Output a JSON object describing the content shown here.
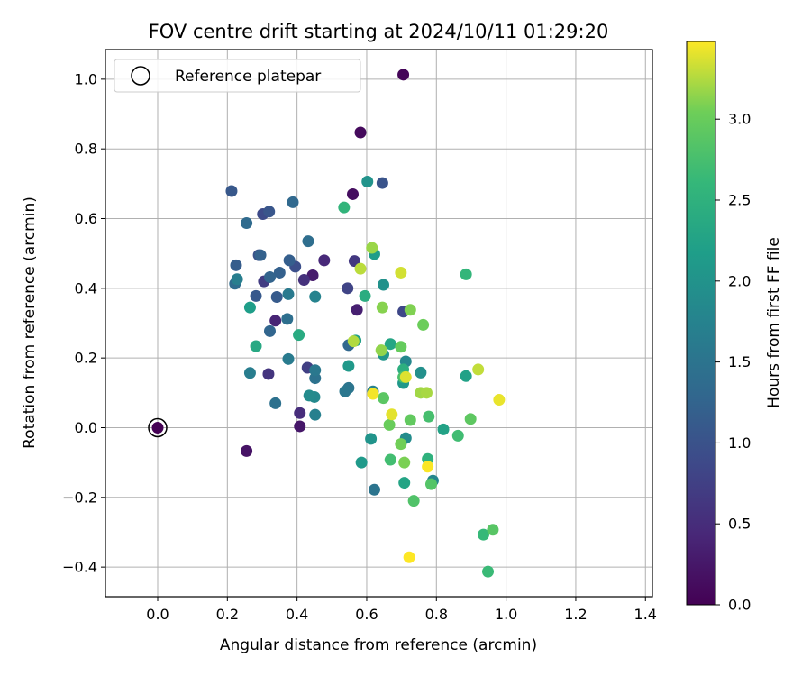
{
  "chart_data": {
    "type": "scatter",
    "title": "FOV centre drift starting at 2024/10/11 01:29:20",
    "xlabel": "Angular distance from reference (arcmin)",
    "ylabel": "Rotation from reference (arcmin)",
    "xlim": [
      -0.15,
      1.42
    ],
    "ylim": [
      -0.485,
      1.085
    ],
    "x_ticks": [
      0.0,
      0.2,
      0.4,
      0.6,
      0.8,
      1.0,
      1.2,
      1.4
    ],
    "x_tick_labels": [
      "0.0",
      "0.2",
      "0.4",
      "0.6",
      "0.8",
      "1.0",
      "1.2",
      "1.4"
    ],
    "y_ticks": [
      -0.4,
      -0.2,
      0.0,
      0.2,
      0.4,
      0.6,
      0.8,
      1.0
    ],
    "y_tick_labels": [
      "−0.4",
      "−0.2",
      "0.0",
      "0.2",
      "0.4",
      "0.6",
      "0.8",
      "1.0"
    ],
    "grid": true,
    "legend": {
      "placement": "upper-left",
      "entries": [
        "Reference platepar"
      ]
    },
    "colorbar": {
      "label": "Hours from first FF file",
      "colormap": "viridis",
      "range": [
        0.0,
        3.48
      ],
      "ticks": [
        0.0,
        0.5,
        1.0,
        1.5,
        2.0,
        2.5,
        3.0
      ],
      "tick_labels": [
        "0.0",
        "0.5",
        "1.0",
        "1.5",
        "2.0",
        "2.5",
        "3.0"
      ]
    },
    "reference_point": {
      "x": 0.0,
      "y": 0.0
    },
    "points": [
      {
        "x": 0.0,
        "y": 0.0,
        "h": 0.0
      },
      {
        "x": 0.705,
        "y": 1.013,
        "h": 0.05
      },
      {
        "x": 0.582,
        "y": 0.847,
        "h": 0.1
      },
      {
        "x": 0.56,
        "y": 0.67,
        "h": 0.15
      },
      {
        "x": 0.255,
        "y": -0.067,
        "h": 0.2
      },
      {
        "x": 0.408,
        "y": 0.004,
        "h": 0.25
      },
      {
        "x": 0.445,
        "y": 0.437,
        "h": 0.3
      },
      {
        "x": 0.572,
        "y": 0.338,
        "h": 0.35
      },
      {
        "x": 0.338,
        "y": 0.307,
        "h": 0.4
      },
      {
        "x": 0.478,
        "y": 0.48,
        "h": 0.45
      },
      {
        "x": 0.408,
        "y": 0.042,
        "h": 0.5
      },
      {
        "x": 0.42,
        "y": 0.424,
        "h": 0.55
      },
      {
        "x": 0.318,
        "y": 0.154,
        "h": 0.6
      },
      {
        "x": 0.565,
        "y": 0.478,
        "h": 0.65
      },
      {
        "x": 0.305,
        "y": 0.42,
        "h": 0.7
      },
      {
        "x": 0.43,
        "y": 0.172,
        "h": 0.75
      },
      {
        "x": 0.545,
        "y": 0.4,
        "h": 0.8
      },
      {
        "x": 0.705,
        "y": 0.333,
        "h": 0.85
      },
      {
        "x": 0.302,
        "y": 0.613,
        "h": 0.9
      },
      {
        "x": 0.395,
        "y": 0.462,
        "h": 0.95
      },
      {
        "x": 0.29,
        "y": 0.495,
        "h": 1.0
      },
      {
        "x": 0.645,
        "y": 0.702,
        "h": 1.02
      },
      {
        "x": 0.32,
        "y": 0.62,
        "h": 1.05
      },
      {
        "x": 0.212,
        "y": 0.679,
        "h": 1.08
      },
      {
        "x": 0.282,
        "y": 0.378,
        "h": 1.1
      },
      {
        "x": 0.342,
        "y": 0.375,
        "h": 1.12
      },
      {
        "x": 0.225,
        "y": 0.466,
        "h": 1.15
      },
      {
        "x": 0.378,
        "y": 0.48,
        "h": 1.18
      },
      {
        "x": 0.35,
        "y": 0.445,
        "h": 1.2
      },
      {
        "x": 0.295,
        "y": 0.495,
        "h": 1.22
      },
      {
        "x": 0.322,
        "y": 0.432,
        "h": 1.25
      },
      {
        "x": 0.322,
        "y": 0.277,
        "h": 1.28
      },
      {
        "x": 0.548,
        "y": 0.237,
        "h": 1.3
      },
      {
        "x": 0.388,
        "y": 0.647,
        "h": 1.32
      },
      {
        "x": 0.255,
        "y": 0.587,
        "h": 1.35
      },
      {
        "x": 0.222,
        "y": 0.413,
        "h": 1.38
      },
      {
        "x": 0.432,
        "y": 0.535,
        "h": 1.4
      },
      {
        "x": 0.372,
        "y": 0.312,
        "h": 1.42
      },
      {
        "x": 0.338,
        "y": 0.07,
        "h": 1.45
      },
      {
        "x": 0.452,
        "y": 0.142,
        "h": 1.48
      },
      {
        "x": 0.622,
        "y": -0.178,
        "h": 1.5
      },
      {
        "x": 0.548,
        "y": 0.114,
        "h": 1.52
      },
      {
        "x": 0.538,
        "y": 0.104,
        "h": 1.55
      },
      {
        "x": 0.452,
        "y": 0.165,
        "h": 1.58
      },
      {
        "x": 0.375,
        "y": 0.383,
        "h": 1.6
      },
      {
        "x": 0.375,
        "y": 0.197,
        "h": 1.62
      },
      {
        "x": 0.265,
        "y": 0.157,
        "h": 1.65
      },
      {
        "x": 0.228,
        "y": 0.426,
        "h": 1.68
      },
      {
        "x": 0.452,
        "y": 0.037,
        "h": 1.7
      },
      {
        "x": 0.618,
        "y": 0.104,
        "h": 1.72
      },
      {
        "x": 0.452,
        "y": 0.376,
        "h": 1.75
      },
      {
        "x": 0.79,
        "y": -0.152,
        "h": 1.8
      },
      {
        "x": 0.712,
        "y": 0.19,
        "h": 1.82
      },
      {
        "x": 0.45,
        "y": 0.088,
        "h": 1.85
      },
      {
        "x": 0.435,
        "y": 0.092,
        "h": 1.88
      },
      {
        "x": 0.712,
        "y": -0.03,
        "h": 1.9
      },
      {
        "x": 0.755,
        "y": 0.158,
        "h": 1.95
      },
      {
        "x": 0.648,
        "y": 0.41,
        "h": 1.98
      },
      {
        "x": 0.602,
        "y": 0.706,
        "h": 2.0
      },
      {
        "x": 0.612,
        "y": -0.032,
        "h": 2.02
      },
      {
        "x": 0.648,
        "y": 0.21,
        "h": 2.05
      },
      {
        "x": 0.705,
        "y": 0.128,
        "h": 2.08
      },
      {
        "x": 0.548,
        "y": 0.177,
        "h": 2.1
      },
      {
        "x": 0.585,
        "y": -0.1,
        "h": 2.12
      },
      {
        "x": 0.622,
        "y": 0.498,
        "h": 2.15
      },
      {
        "x": 0.265,
        "y": 0.345,
        "h": 2.18
      },
      {
        "x": 0.568,
        "y": 0.25,
        "h": 2.2
      },
      {
        "x": 0.885,
        "y": 0.148,
        "h": 2.22
      },
      {
        "x": 0.82,
        "y": -0.005,
        "h": 2.25
      },
      {
        "x": 0.708,
        "y": -0.158,
        "h": 2.28
      },
      {
        "x": 0.668,
        "y": 0.24,
        "h": 2.3
      },
      {
        "x": 0.282,
        "y": 0.234,
        "h": 2.35
      },
      {
        "x": 0.405,
        "y": 0.266,
        "h": 2.38
      },
      {
        "x": 0.595,
        "y": 0.378,
        "h": 2.42
      },
      {
        "x": 0.705,
        "y": 0.167,
        "h": 2.45
      },
      {
        "x": 0.775,
        "y": -0.09,
        "h": 2.5
      },
      {
        "x": 0.535,
        "y": 0.632,
        "h": 2.55
      },
      {
        "x": 0.885,
        "y": 0.44,
        "h": 2.58
      },
      {
        "x": 0.935,
        "y": -0.307,
        "h": 2.62
      },
      {
        "x": 0.948,
        "y": -0.413,
        "h": 2.65
      },
      {
        "x": 0.862,
        "y": -0.023,
        "h": 2.7
      },
      {
        "x": 0.668,
        "y": -0.092,
        "h": 2.72
      },
      {
        "x": 0.778,
        "y": 0.032,
        "h": 2.75
      },
      {
        "x": 0.705,
        "y": 0.145,
        "h": 2.78
      },
      {
        "x": 0.735,
        "y": -0.21,
        "h": 2.82
      },
      {
        "x": 0.785,
        "y": -0.162,
        "h": 2.85
      },
      {
        "x": 0.962,
        "y": -0.293,
        "h": 2.88
      },
      {
        "x": 0.648,
        "y": 0.085,
        "h": 2.9
      },
      {
        "x": 0.898,
        "y": 0.025,
        "h": 2.92
      },
      {
        "x": 0.725,
        "y": 0.022,
        "h": 2.95
      },
      {
        "x": 0.698,
        "y": 0.232,
        "h": 2.98
      },
      {
        "x": 0.665,
        "y": 0.008,
        "h": 3.0
      },
      {
        "x": 0.762,
        "y": 0.295,
        "h": 3.02
      },
      {
        "x": 0.698,
        "y": -0.047,
        "h": 3.05
      },
      {
        "x": 0.708,
        "y": -0.1,
        "h": 3.08
      },
      {
        "x": 0.725,
        "y": 0.338,
        "h": 3.1
      },
      {
        "x": 0.645,
        "y": 0.345,
        "h": 3.12
      },
      {
        "x": 0.642,
        "y": 0.222,
        "h": 3.15
      },
      {
        "x": 0.615,
        "y": 0.516,
        "h": 3.18
      },
      {
        "x": 0.755,
        "y": 0.1,
        "h": 3.2
      },
      {
        "x": 0.772,
        "y": 0.1,
        "h": 3.22
      },
      {
        "x": 0.562,
        "y": 0.248,
        "h": 3.25
      },
      {
        "x": 0.582,
        "y": 0.456,
        "h": 3.28
      },
      {
        "x": 0.92,
        "y": 0.167,
        "h": 3.3
      },
      {
        "x": 0.698,
        "y": 0.445,
        "h": 3.35
      },
      {
        "x": 0.712,
        "y": 0.145,
        "h": 3.38
      },
      {
        "x": 0.672,
        "y": 0.038,
        "h": 3.4
      },
      {
        "x": 0.98,
        "y": 0.08,
        "h": 3.42
      },
      {
        "x": 0.618,
        "y": 0.097,
        "h": 3.45
      },
      {
        "x": 0.775,
        "y": -0.112,
        "h": 3.47
      },
      {
        "x": 0.722,
        "y": -0.372,
        "h": 3.48
      }
    ]
  }
}
